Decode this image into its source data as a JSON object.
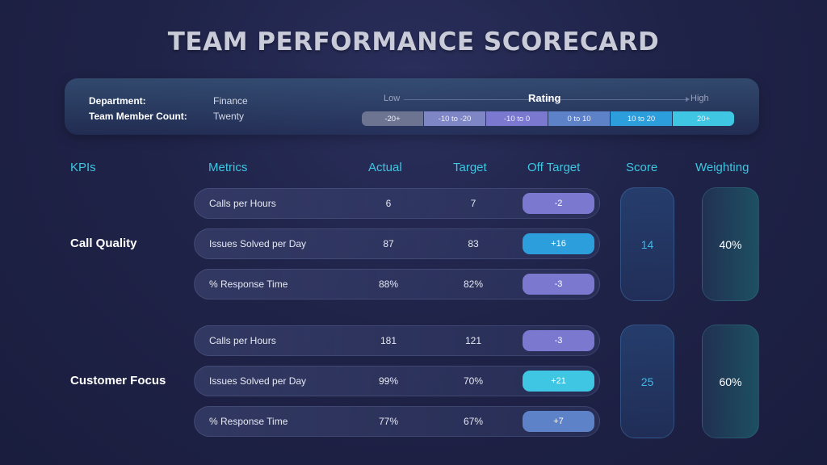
{
  "title": "TEAM PERFORMANCE SCORECARD",
  "info": {
    "department_label": "Department:",
    "department_value": "Finance",
    "member_count_label": "Team Member Count:",
    "member_count_value": "Twenty"
  },
  "rating": {
    "title": "Rating",
    "low": "Low",
    "high": "High",
    "scale": [
      {
        "label": "-20+",
        "color": "#6c7492"
      },
      {
        "label": "-10 to -20",
        "color": "#7e86c6"
      },
      {
        "label": "-10 to 0",
        "color": "#7b78cf"
      },
      {
        "label": "0 to 10",
        "color": "#5d82c8"
      },
      {
        "label": "10 to 20",
        "color": "#2d9edc"
      },
      {
        "label": "20+",
        "color": "#3ec6e2"
      }
    ]
  },
  "headers": {
    "kpis": "KPIs",
    "metrics": "Metrics",
    "actual": "Actual",
    "target": "Target",
    "off_target": "Off Target",
    "score": "Score",
    "weighting": "Weighting"
  },
  "groups": [
    {
      "kpi": "Call Quality",
      "score": "14",
      "weighting": "40%",
      "rows": [
        {
          "metric": "Calls per Hours",
          "actual": "6",
          "target": "7",
          "off": "-2",
          "off_color": "#7b78cf"
        },
        {
          "metric": "Issues Solved per Day",
          "actual": "87",
          "target": "83",
          "off": "+16",
          "off_color": "#2d9edc"
        },
        {
          "metric": "% Response Time",
          "actual": "88%",
          "target": "82%",
          "off": "-3",
          "off_color": "#7b78cf"
        }
      ]
    },
    {
      "kpi": "Customer Focus",
      "score": "25",
      "weighting": "60%",
      "rows": [
        {
          "metric": "Calls per Hours",
          "actual": "181",
          "target": "121",
          "off": "-3",
          "off_color": "#7b78cf"
        },
        {
          "metric": "Issues Solved per Day",
          "actual": "99%",
          "target": "70%",
          "off": "+21",
          "off_color": "#3ec6e2"
        },
        {
          "metric": "% Response Time",
          "actual": "77%",
          "target": "67%",
          "off": "+7",
          "off_color": "#5d82c8"
        }
      ]
    }
  ]
}
